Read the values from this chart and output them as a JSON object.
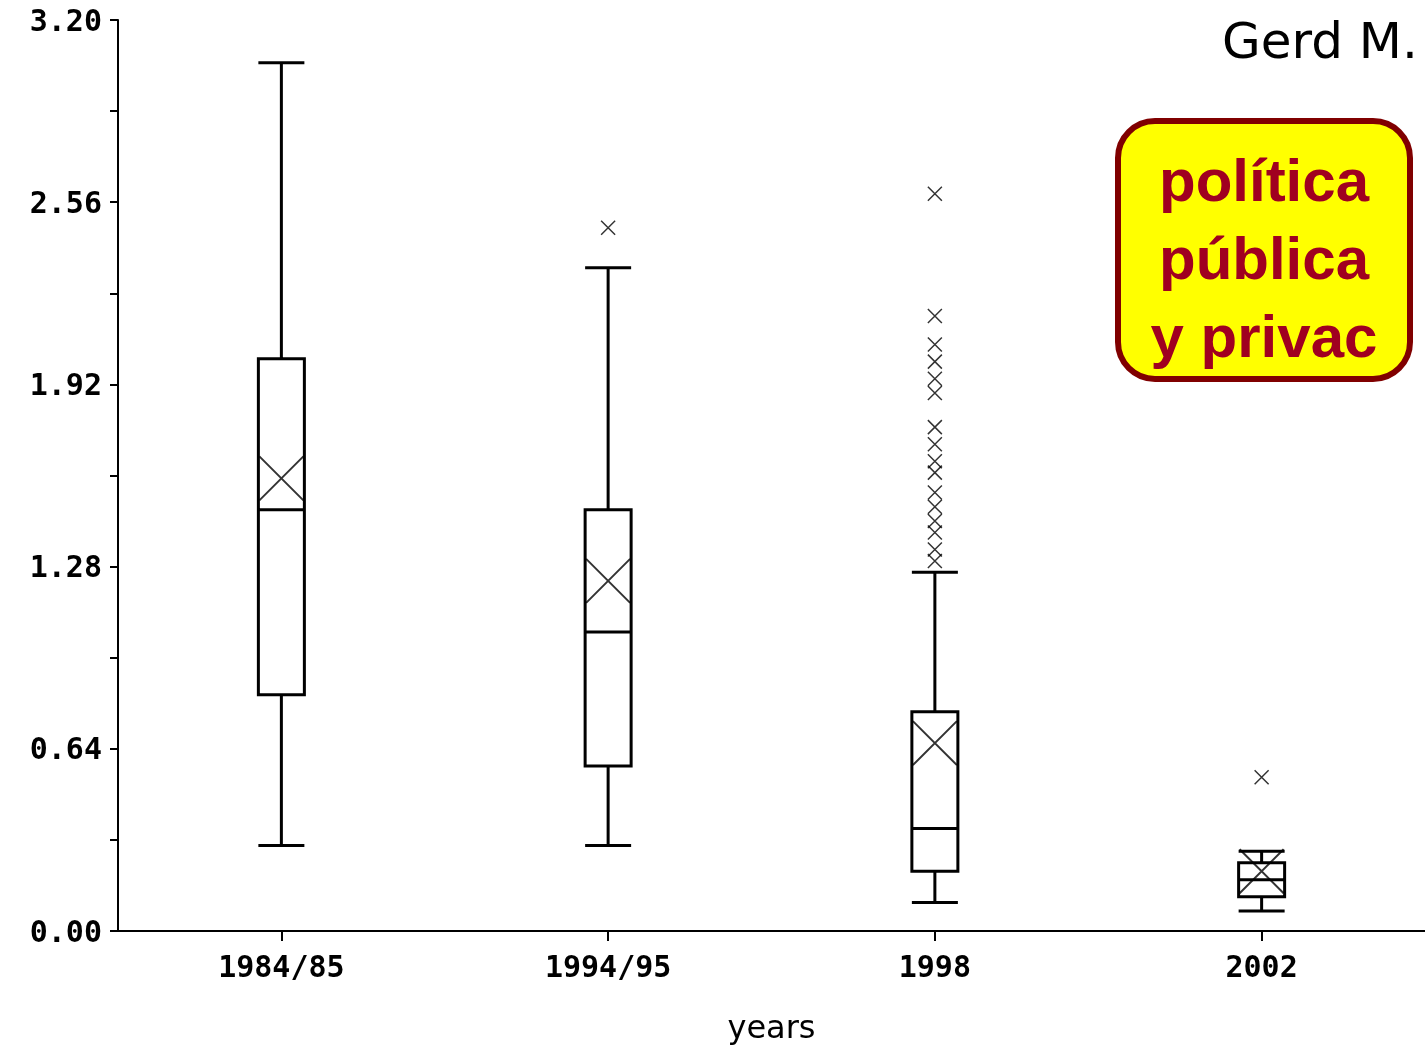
{
  "chart_data": {
    "type": "box",
    "xlabel": "years",
    "categories": [
      "1984/85",
      "1994/95",
      "1998",
      "2002"
    ],
    "series": [
      {
        "color": "#000000",
        "boxes": [
          {
            "low": 0.3,
            "q1": 0.83,
            "median": 1.48,
            "q3": 2.01,
            "high": 3.05,
            "mean": 1.59
          },
          {
            "low": 0.3,
            "q1": 0.58,
            "median": 1.05,
            "q3": 1.48,
            "high": 2.33,
            "mean": 1.23,
            "outliers": [
              2.47
            ]
          },
          {
            "low": 0.1,
            "q1": 0.21,
            "median": 0.36,
            "q3": 0.77,
            "high": 1.26,
            "mean": 0.66,
            "outliers": [
              2.59,
              2.16,
              2.06,
              2.0,
              1.94,
              1.89,
              1.77,
              1.71,
              1.65,
              1.61,
              1.54,
              1.49,
              1.44,
              1.4,
              1.34,
              1.3
            ]
          },
          {
            "low": 0.07,
            "q1": 0.12,
            "median": 0.18,
            "q3": 0.24,
            "high": 0.28,
            "mean": 0.21,
            "outliers": [
              0.54
            ]
          }
        ]
      }
    ],
    "ylim": [
      0,
      3.2
    ],
    "yticks": [
      {
        "value": 0,
        "label": "0.00"
      },
      {
        "value": 0.32,
        "label": null
      },
      0.64,
      {
        "value": 0.96,
        "label": null
      },
      1.28,
      {
        "value": 1.6,
        "label": null
      },
      1.92,
      {
        "value": 2.24,
        "label": null
      },
      2.56,
      {
        "value": 2.88,
        "label": null
      },
      {
        "value": 3.2,
        "label": "3.20"
      }
    ],
    "grid": false,
    "annotations": [
      "Gerd M.",
      "política\npública\ny privac"
    ]
  }
}
